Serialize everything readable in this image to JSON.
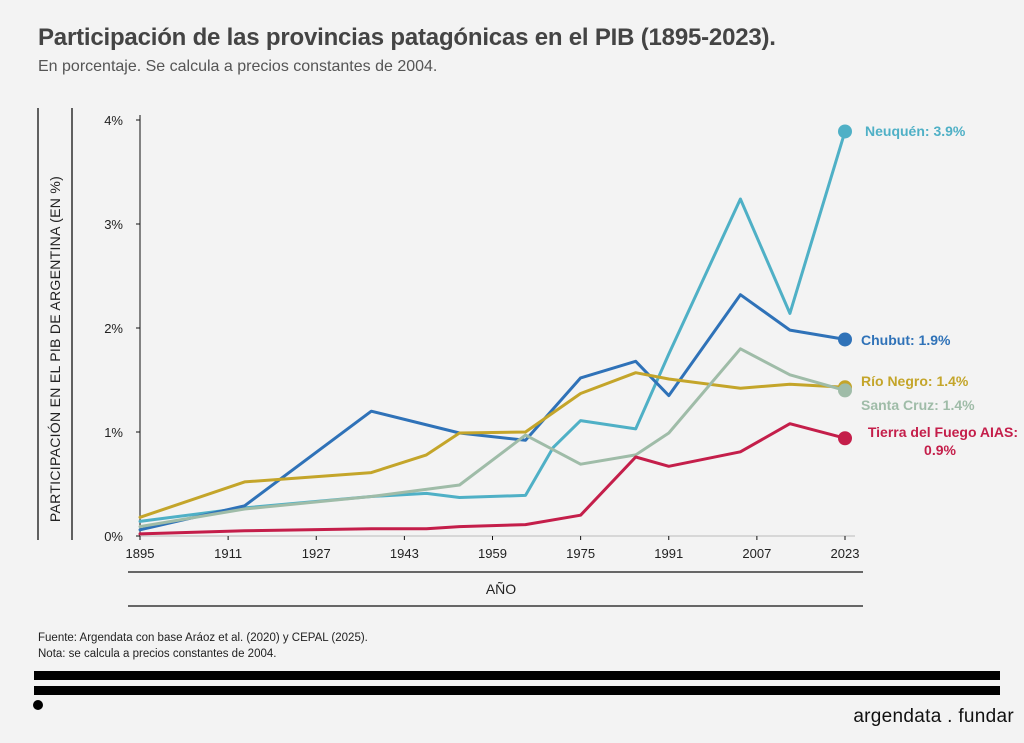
{
  "header": {
    "title": "Participación de las provincias patagónicas en el PIB (1895-2023).",
    "subtitle": "En porcentaje. Se calcula a precios constantes de 2004."
  },
  "chart_data": {
    "type": "line",
    "xlabel": "AÑO",
    "ylabel": "PARTICIPACIÓN EN EL PIB DE ARGENTINA (EN %)",
    "xlim": [
      1895,
      2023
    ],
    "ylim": [
      0,
      4
    ],
    "x_ticks": [
      1895,
      1911,
      1927,
      1943,
      1959,
      1975,
      1991,
      2007,
      2023
    ],
    "y_ticks": [
      {
        "value": 0,
        "label": "0%"
      },
      {
        "value": 1,
        "label": "1%"
      },
      {
        "value": 2,
        "label": "2%"
      },
      {
        "value": 3,
        "label": "3%"
      },
      {
        "value": 4,
        "label": "4%"
      }
    ],
    "grid": false,
    "series": [
      {
        "name": "Neuquén",
        "end_label": "Neuquén: 3.9%",
        "color": "#4fb0c6",
        "x": [
          1895,
          1914,
          1937,
          1947,
          1953,
          1965,
          1970,
          1975,
          1985,
          1991,
          2004,
          2013,
          2023
        ],
        "y": [
          0.14,
          0.27,
          0.38,
          0.41,
          0.37,
          0.39,
          0.85,
          1.11,
          1.03,
          1.75,
          3.24,
          2.14,
          3.89
        ]
      },
      {
        "name": "Chubut",
        "end_label": "Chubut: 1.9%",
        "color": "#2f72b8",
        "x": [
          1895,
          1914,
          1937,
          1953,
          1965,
          1975,
          1985,
          1991,
          2004,
          2013,
          2023
        ],
        "y": [
          0.06,
          0.29,
          1.2,
          0.99,
          0.92,
          1.52,
          1.68,
          1.35,
          2.32,
          1.98,
          1.89
        ]
      },
      {
        "name": "Río Negro",
        "end_label": "Río Negro: 1.4%",
        "color": "#c4a52a",
        "x": [
          1895,
          1914,
          1937,
          1947,
          1953,
          1965,
          1975,
          1985,
          1991,
          2004,
          2013,
          2023
        ],
        "y": [
          0.18,
          0.52,
          0.61,
          0.78,
          0.99,
          1.0,
          1.37,
          1.57,
          1.51,
          1.42,
          1.46,
          1.43
        ]
      },
      {
        "name": "Santa Cruz",
        "end_label": "Santa Cruz: 1.4%",
        "color": "#9fbca8",
        "x": [
          1895,
          1914,
          1937,
          1953,
          1965,
          1975,
          1985,
          1991,
          2004,
          2013,
          2023
        ],
        "y": [
          0.09,
          0.26,
          0.38,
          0.49,
          0.97,
          0.69,
          0.78,
          0.99,
          1.8,
          1.55,
          1.4
        ]
      },
      {
        "name": "Tierra del Fuego AIAS",
        "end_label": [
          "Tierra del Fuego AIAS:",
          "0.9%"
        ],
        "color": "#c41e4a",
        "x": [
          1895,
          1914,
          1937,
          1947,
          1953,
          1965,
          1975,
          1985,
          1991,
          2004,
          2013,
          2023
        ],
        "y": [
          0.02,
          0.05,
          0.07,
          0.07,
          0.09,
          0.11,
          0.2,
          0.76,
          0.67,
          0.81,
          1.08,
          0.94
        ]
      }
    ]
  },
  "footer": {
    "source": "Fuente: Argendata con base Aráoz et al. (2020) y CEPAL (2025).",
    "note": "Nota: se calcula a precios constantes de 2004.",
    "brand": "argendata . fundar"
  }
}
